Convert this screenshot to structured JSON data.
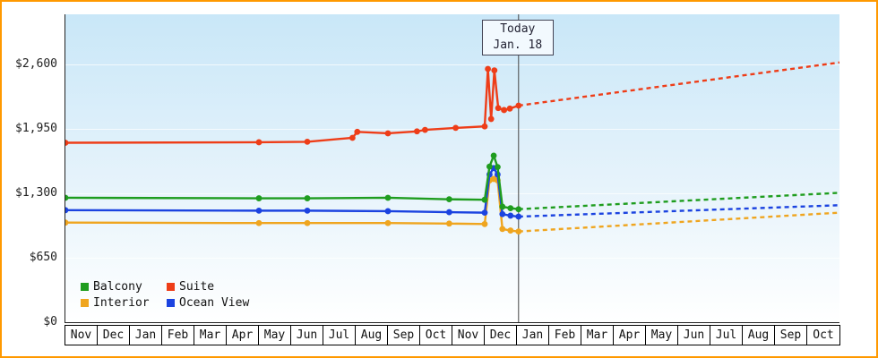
{
  "colors": {
    "frame_border": "#ff9900",
    "plot_bg_top": "#c9e7f8",
    "plot_bg_bottom": "#ffffff",
    "axis": "#222222",
    "today_line": "#444444"
  },
  "chart_data": {
    "type": "line",
    "title": "",
    "legend_position": "bottom-left-inside",
    "grid": "faint-horizontal",
    "ylim": [
      0,
      3100
    ],
    "y_ticks": [
      {
        "label": "$0",
        "value": 0
      },
      {
        "label": "$650",
        "value": 650
      },
      {
        "label": "$1,300",
        "value": 1300
      },
      {
        "label": "$1,950",
        "value": 1950
      },
      {
        "label": "$2,600",
        "value": 2600
      }
    ],
    "x_months": [
      "Nov",
      "Dec",
      "Jan",
      "Feb",
      "Mar",
      "Apr",
      "May",
      "Jun",
      "Jul",
      "Aug",
      "Sep",
      "Oct",
      "Nov",
      "Dec",
      "Jan",
      "Feb",
      "Mar",
      "Apr",
      "May",
      "Jun",
      "Jul",
      "Aug",
      "Sep",
      "Oct"
    ],
    "x_unit": "month-index (0 = first Nov)",
    "today_x": 14.05,
    "today": {
      "line1": "Today",
      "line2": "Jan. 18"
    },
    "series": [
      {
        "name": "Interior",
        "color": "#efa51f",
        "solid": [
          [
            0,
            1005
          ],
          [
            6,
            1000
          ],
          [
            7.5,
            1000
          ],
          [
            10,
            1000
          ],
          [
            11.9,
            995
          ],
          [
            13.0,
            990
          ],
          [
            13.15,
            1430
          ],
          [
            13.28,
            1445
          ],
          [
            13.4,
            1430
          ],
          [
            13.55,
            940
          ],
          [
            13.8,
            925
          ],
          [
            14.05,
            915
          ]
        ],
        "dashed": [
          [
            14.05,
            915
          ],
          [
            24,
            1105
          ]
        ]
      },
      {
        "name": "Ocean View",
        "color": "#1b43e0",
        "solid": [
          [
            0,
            1130
          ],
          [
            6,
            1125
          ],
          [
            7.5,
            1125
          ],
          [
            10,
            1120
          ],
          [
            11.9,
            1110
          ],
          [
            13.0,
            1105
          ],
          [
            13.15,
            1490
          ],
          [
            13.28,
            1555
          ],
          [
            13.4,
            1490
          ],
          [
            13.55,
            1090
          ],
          [
            13.8,
            1075
          ],
          [
            14.05,
            1065
          ]
        ],
        "dashed": [
          [
            14.05,
            1065
          ],
          [
            24,
            1180
          ]
        ]
      },
      {
        "name": "Balcony",
        "color": "#1f9d1f",
        "solid": [
          [
            0,
            1255
          ],
          [
            6,
            1250
          ],
          [
            7.5,
            1250
          ],
          [
            10,
            1255
          ],
          [
            11.9,
            1240
          ],
          [
            13.0,
            1235
          ],
          [
            13.15,
            1570
          ],
          [
            13.28,
            1680
          ],
          [
            13.4,
            1565
          ],
          [
            13.55,
            1165
          ],
          [
            13.8,
            1150
          ],
          [
            14.05,
            1140
          ]
        ],
        "dashed": [
          [
            14.05,
            1140
          ],
          [
            24,
            1305
          ]
        ]
      },
      {
        "name": "Suite",
        "color": "#ee3d18",
        "solid": [
          [
            0,
            1810
          ],
          [
            6,
            1815
          ],
          [
            7.5,
            1820
          ],
          [
            8.9,
            1860
          ],
          [
            9.05,
            1920
          ],
          [
            10,
            1905
          ],
          [
            10.9,
            1925
          ],
          [
            11.15,
            1940
          ],
          [
            12.1,
            1960
          ],
          [
            13.0,
            1975
          ],
          [
            13.1,
            2555
          ],
          [
            13.2,
            2050
          ],
          [
            13.3,
            2540
          ],
          [
            13.42,
            2160
          ],
          [
            13.6,
            2140
          ],
          [
            13.78,
            2155
          ],
          [
            14.05,
            2185
          ]
        ],
        "dashed": [
          [
            14.05,
            2185
          ],
          [
            24,
            2620
          ]
        ]
      }
    ],
    "legend": [
      {
        "label": "Balcony",
        "color": "#1f9d1f"
      },
      {
        "label": "Suite",
        "color": "#ee3d18"
      },
      {
        "label": "Interior",
        "color": "#efa51f"
      },
      {
        "label": "Ocean View",
        "color": "#1b43e0"
      }
    ]
  }
}
